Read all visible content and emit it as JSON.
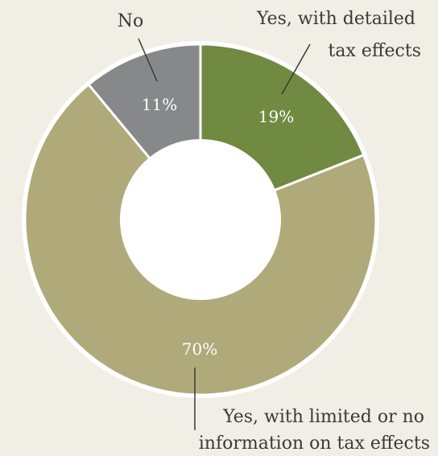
{
  "chart_data": {
    "type": "pie",
    "style": "donut",
    "title": "",
    "categories": [
      "Yes, with detailed tax effects",
      "Yes, with limited or no information on tax effects",
      "No"
    ],
    "values": [
      19,
      70,
      11
    ],
    "value_labels": [
      "19%",
      "70%",
      "11%"
    ],
    "colors": [
      "#708a42",
      "#b0aa7a",
      "#86888a"
    ],
    "label_lines": [
      [
        "Yes, with detailed",
        "tax effects"
      ],
      [
        "Yes, with limited or no",
        "information on tax effects"
      ],
      [
        "No"
      ]
    ]
  },
  "colors": {
    "background": "#f1eee6",
    "separator": "#ffffff",
    "label_text": "#3a3a3a",
    "value_text": "#ffffff"
  }
}
